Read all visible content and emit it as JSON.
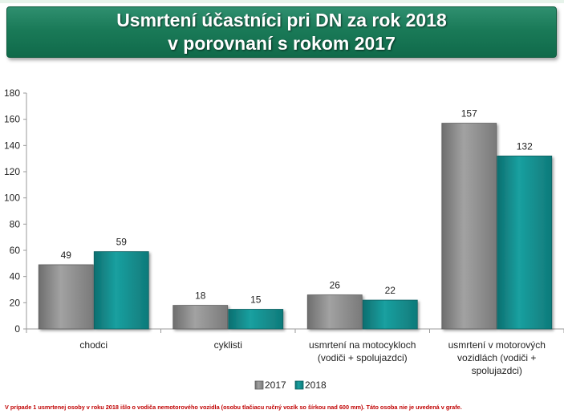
{
  "title": {
    "line1": "Usmrtení účastníci pri DN za rok 2018",
    "line2": "v porovnaní s rokom 2017"
  },
  "chart_data": {
    "type": "bar",
    "categories": [
      [
        "chodci"
      ],
      [
        "cyklisti"
      ],
      [
        "usmrtení na motocykloch",
        "(vodiči + spolujazdci)"
      ],
      [
        "usmrtení v motorových",
        "vozidlách (vodiči +",
        "spolujazdci)"
      ]
    ],
    "series": [
      {
        "name": "2017",
        "values": [
          49,
          18,
          26,
          157
        ],
        "color": "#8c8c8c"
      },
      {
        "name": "2018",
        "values": [
          59,
          15,
          22,
          132
        ],
        "color": "#148a8a"
      }
    ],
    "ylim": [
      0,
      180
    ],
    "yticks": [
      0,
      20,
      40,
      60,
      80,
      100,
      120,
      140,
      160,
      180
    ],
    "grid": false,
    "legend_position": "bottom-center",
    "data_labels": true
  },
  "footnote": "V prípade 1 usmrtenej osoby v roku 2018 išlo o vodiča nemotorového vozidla (osobu tlačiacu ručný vozík so šírkou nad 600 mm). Táto osoba nie je uvedená v grafe."
}
